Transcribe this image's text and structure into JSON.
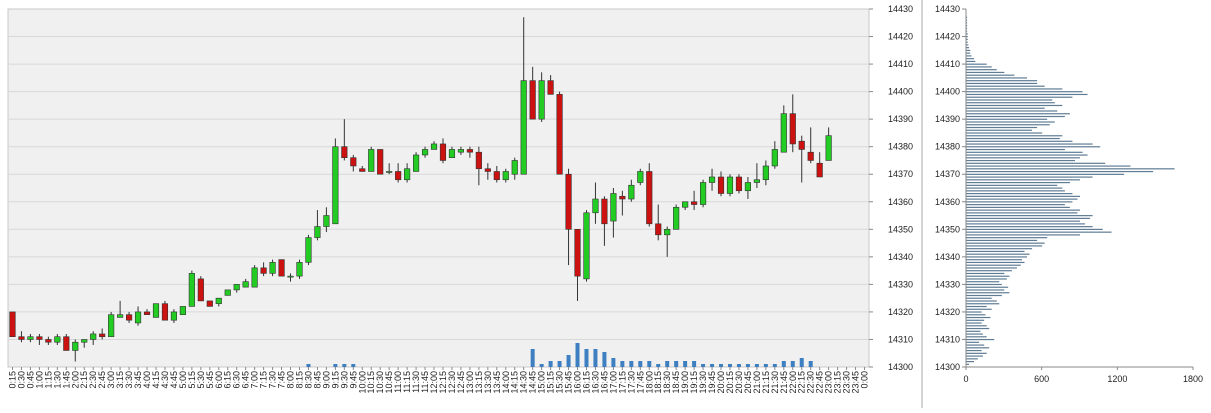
{
  "chart_data": [
    {
      "type": "candlestick",
      "ylim": [
        14300,
        14430
      ],
      "y_ticks": [
        14300,
        14310,
        14320,
        14330,
        14340,
        14350,
        14360,
        14370,
        14380,
        14390,
        14400,
        14410,
        14420,
        14430
      ],
      "y_tick_labels": [
        "14300",
        "14310",
        "14320",
        "14330",
        "14340",
        "14350",
        "14360",
        "14370",
        "14380",
        "14390",
        "14400",
        "14410",
        "14420",
        "14430"
      ],
      "grid": true,
      "background": "#f0f0f0",
      "up_color": "#22cc22",
      "down_color": "#cc1111",
      "volume_color": "#3e7fc1",
      "x_labels": [
        "0:15",
        "0:30",
        "0:45",
        "1:00",
        "1:15",
        "1:30",
        "1:45",
        "2:00",
        "2:15",
        "2:30",
        "2:45",
        "3:00",
        "3:15",
        "3:30",
        "3:45",
        "4:00",
        "4:15",
        "4:30",
        "4:45",
        "5:00",
        "5:15",
        "5:30",
        "5:45",
        "6:00",
        "6:15",
        "6:30",
        "6:45",
        "7:00",
        "7:15",
        "7:30",
        "7:45",
        "8:00",
        "8:15",
        "8:30",
        "8:45",
        "9:00",
        "9:15",
        "9:30",
        "9:45",
        "10:00",
        "10:15",
        "10:30",
        "10:45",
        "11:00",
        "11:15",
        "11:30",
        "11:45",
        "12:00",
        "12:15",
        "12:30",
        "12:45",
        "13:00",
        "13:15",
        "13:30",
        "13:45",
        "14:00",
        "14:15",
        "14:30",
        "14:45",
        "15:00",
        "15:15",
        "15:30",
        "15:45",
        "16:00",
        "16:15",
        "16:30",
        "16:45",
        "17:00",
        "17:15",
        "17:30",
        "17:45",
        "18:00",
        "18:15",
        "18:30",
        "18:45",
        "19:00",
        "19:15",
        "19:30",
        "19:45",
        "20:00",
        "20:15",
        "20:30",
        "20:45",
        "21:00",
        "21:15",
        "21:30",
        "21:45",
        "22:00",
        "22:15",
        "22:30",
        "22:45",
        "23:00",
        "23:15",
        "23:30",
        "23:45",
        "0:00"
      ],
      "candles": [
        {
          "o": 14320,
          "h": 14320,
          "l": 14311,
          "c": 14311
        },
        {
          "o": 14311,
          "h": 14313,
          "l": 14309,
          "c": 14310
        },
        {
          "o": 14310,
          "h": 14312,
          "l": 14309,
          "c": 14311
        },
        {
          "o": 14311,
          "h": 14312,
          "l": 14308,
          "c": 14310
        },
        {
          "o": 14310,
          "h": 14311,
          "l": 14308,
          "c": 14309
        },
        {
          "o": 14309,
          "h": 14312,
          "l": 14308,
          "c": 14311
        },
        {
          "o": 14311,
          "h": 14312,
          "l": 14306,
          "c": 14306
        },
        {
          "o": 14306,
          "h": 14310,
          "l": 14302,
          "c": 14309
        },
        {
          "o": 14309,
          "h": 14310,
          "l": 14307,
          "c": 14310
        },
        {
          "o": 14310,
          "h": 14313,
          "l": 14308,
          "c": 14312
        },
        {
          "o": 14312,
          "h": 14314,
          "l": 14310,
          "c": 14311
        },
        {
          "o": 14311,
          "h": 14320,
          "l": 14311,
          "c": 14319
        },
        {
          "o": 14318,
          "h": 14324,
          "l": 14318,
          "c": 14319
        },
        {
          "o": 14319,
          "h": 14320,
          "l": 14316,
          "c": 14317
        },
        {
          "o": 14316,
          "h": 14322,
          "l": 14315,
          "c": 14320
        },
        {
          "o": 14320,
          "h": 14321,
          "l": 14319,
          "c": 14319
        },
        {
          "o": 14318,
          "h": 14323,
          "l": 14318,
          "c": 14323
        },
        {
          "o": 14323,
          "h": 14324,
          "l": 14317,
          "c": 14317
        },
        {
          "o": 14317,
          "h": 14321,
          "l": 14316,
          "c": 14320
        },
        {
          "o": 14319,
          "h": 14322,
          "l": 14319,
          "c": 14322
        },
        {
          "o": 14322,
          "h": 14335,
          "l": 14322,
          "c": 14334
        },
        {
          "o": 14332,
          "h": 14333,
          "l": 14324,
          "c": 14324
        },
        {
          "o": 14324,
          "h": 14324,
          "l": 14322,
          "c": 14322
        },
        {
          "o": 14323,
          "h": 14325,
          "l": 14322,
          "c": 14325
        },
        {
          "o": 14326,
          "h": 14328,
          "l": 14326,
          "c": 14328
        },
        {
          "o": 14328,
          "h": 14330,
          "l": 14327,
          "c": 14330
        },
        {
          "o": 14329,
          "h": 14332,
          "l": 14329,
          "c": 14331
        },
        {
          "o": 14329,
          "h": 14337,
          "l": 14329,
          "c": 14336
        },
        {
          "o": 14336,
          "h": 14338,
          "l": 14333,
          "c": 14334
        },
        {
          "o": 14334,
          "h": 14339,
          "l": 14333,
          "c": 14338
        },
        {
          "o": 14339,
          "h": 14339,
          "l": 14333,
          "c": 14333
        },
        {
          "o": 14333,
          "h": 14334,
          "l": 14331,
          "c": 14333
        },
        {
          "o": 14333,
          "h": 14339,
          "l": 14332,
          "c": 14338
        },
        {
          "o": 14338,
          "h": 14348,
          "l": 14337,
          "c": 14347
        },
        {
          "o": 14347,
          "h": 14357,
          "l": 14346,
          "c": 14351
        },
        {
          "o": 14351,
          "h": 14358,
          "l": 14349,
          "c": 14355
        },
        {
          "o": 14352,
          "h": 14383,
          "l": 14352,
          "c": 14380
        },
        {
          "o": 14380,
          "h": 14390,
          "l": 14375,
          "c": 14376
        },
        {
          "o": 14376,
          "h": 14377,
          "l": 14371,
          "c": 14373
        },
        {
          "o": 14372,
          "h": 14373,
          "l": 14371,
          "c": 14371
        },
        {
          "o": 14371,
          "h": 14380,
          "l": 14371,
          "c": 14379
        },
        {
          "o": 14379,
          "h": 14379,
          "l": 14370,
          "c": 14370
        },
        {
          "o": 14371,
          "h": 14374,
          "l": 14370,
          "c": 14371
        },
        {
          "o": 14371,
          "h": 14374,
          "l": 14367,
          "c": 14368
        },
        {
          "o": 14368,
          "h": 14374,
          "l": 14367,
          "c": 14372
        },
        {
          "o": 14371,
          "h": 14378,
          "l": 14371,
          "c": 14377
        },
        {
          "o": 14377,
          "h": 14380,
          "l": 14376,
          "c": 14379
        },
        {
          "o": 14379,
          "h": 14382,
          "l": 14379,
          "c": 14381
        },
        {
          "o": 14381,
          "h": 14383,
          "l": 14374,
          "c": 14375
        },
        {
          "o": 14376,
          "h": 14380,
          "l": 14376,
          "c": 14379
        },
        {
          "o": 14378,
          "h": 14380,
          "l": 14377,
          "c": 14379
        },
        {
          "o": 14379,
          "h": 14380,
          "l": 14376,
          "c": 14378
        },
        {
          "o": 14378,
          "h": 14380,
          "l": 14366,
          "c": 14372
        },
        {
          "o": 14372,
          "h": 14374,
          "l": 14368,
          "c": 14371
        },
        {
          "o": 14371,
          "h": 14373,
          "l": 14367,
          "c": 14368
        },
        {
          "o": 14368,
          "h": 14372,
          "l": 14367,
          "c": 14371
        },
        {
          "o": 14370,
          "h": 14376,
          "l": 14368,
          "c": 14375
        },
        {
          "o": 14370,
          "h": 14427,
          "l": 14370,
          "c": 14404
        },
        {
          "o": 14404,
          "h": 14409,
          "l": 14390,
          "c": 14390
        },
        {
          "o": 14390,
          "h": 14407,
          "l": 14389,
          "c": 14404
        },
        {
          "o": 14404,
          "h": 14406,
          "l": 14399,
          "c": 14399
        },
        {
          "o": 14399,
          "h": 14400,
          "l": 14370,
          "c": 14370
        },
        {
          "o": 14370,
          "h": 14372,
          "l": 14337,
          "c": 14350
        },
        {
          "o": 14350,
          "h": 14350,
          "l": 14324,
          "c": 14333
        },
        {
          "o": 14332,
          "h": 14357,
          "l": 14331,
          "c": 14356
        },
        {
          "o": 14356,
          "h": 14367,
          "l": 14352,
          "c": 14361
        },
        {
          "o": 14361,
          "h": 14362,
          "l": 14344,
          "c": 14352
        },
        {
          "o": 14353,
          "h": 14365,
          "l": 14347,
          "c": 14363
        },
        {
          "o": 14362,
          "h": 14364,
          "l": 14355,
          "c": 14361
        },
        {
          "o": 14361,
          "h": 14368,
          "l": 14360,
          "c": 14366
        },
        {
          "o": 14367,
          "h": 14372,
          "l": 14366,
          "c": 14371
        },
        {
          "o": 14371,
          "h": 14374,
          "l": 14351,
          "c": 14352
        },
        {
          "o": 14352,
          "h": 14359,
          "l": 14346,
          "c": 14348
        },
        {
          "o": 14348,
          "h": 14351,
          "l": 14340,
          "c": 14350
        },
        {
          "o": 14350,
          "h": 14359,
          "l": 14350,
          "c": 14358
        },
        {
          "o": 14358,
          "h": 14360,
          "l": 14357,
          "c": 14360
        },
        {
          "o": 14360,
          "h": 14364,
          "l": 14357,
          "c": 14359
        },
        {
          "o": 14359,
          "h": 14368,
          "l": 14358,
          "c": 14367
        },
        {
          "o": 14367,
          "h": 14372,
          "l": 14364,
          "c": 14369
        },
        {
          "o": 14369,
          "h": 14371,
          "l": 14362,
          "c": 14363
        },
        {
          "o": 14363,
          "h": 14370,
          "l": 14362,
          "c": 14369
        },
        {
          "o": 14369,
          "h": 14370,
          "l": 14363,
          "c": 14364
        },
        {
          "o": 14364,
          "h": 14369,
          "l": 14361,
          "c": 14367
        },
        {
          "o": 14367,
          "h": 14374,
          "l": 14365,
          "c": 14368
        },
        {
          "o": 14368,
          "h": 14375,
          "l": 14366,
          "c": 14373
        },
        {
          "o": 14373,
          "h": 14382,
          "l": 14372,
          "c": 14379
        },
        {
          "o": 14378,
          "h": 14395,
          "l": 14378,
          "c": 14392
        },
        {
          "o": 14392,
          "h": 14399,
          "l": 14378,
          "c": 14381
        },
        {
          "o": 14382,
          "h": 14384,
          "l": 14367,
          "c": 14379
        },
        {
          "o": 14378,
          "h": 14387,
          "l": 14374,
          "c": 14375
        },
        {
          "o": 14374,
          "h": 14378,
          "l": 14369,
          "c": 14369
        },
        {
          "o": 14375,
          "h": 14387,
          "l": 14375,
          "c": 14384
        },
        null,
        null,
        null,
        null
      ],
      "volumes": [
        0,
        0,
        0,
        0,
        0,
        0,
        0,
        0,
        0,
        0,
        0,
        0,
        0,
        0,
        0,
        0,
        0,
        0,
        0,
        0,
        0,
        0,
        0,
        0,
        0,
        0,
        0,
        0,
        0,
        0,
        0,
        0,
        0,
        1,
        0,
        0,
        1,
        1,
        1,
        0,
        0,
        0,
        0,
        0,
        0,
        0,
        0,
        0,
        0,
        0,
        0,
        0,
        0,
        0,
        0,
        0,
        0,
        0,
        6,
        1,
        2,
        2,
        4,
        8,
        6,
        6,
        5,
        3,
        2,
        2,
        2,
        2,
        1,
        2,
        2,
        2,
        2,
        1,
        1,
        1,
        1,
        1,
        1,
        1,
        1,
        1,
        2,
        2,
        3,
        2,
        0,
        0,
        0,
        0,
        0,
        0
      ],
      "volume_max": 20
    },
    {
      "type": "bar",
      "orientation": "horizontal",
      "ylim": [
        14300,
        14430
      ],
      "y_ticks": [
        14300,
        14310,
        14320,
        14330,
        14340,
        14350,
        14360,
        14370,
        14380,
        14390,
        14400,
        14410,
        14420,
        14430
      ],
      "y_tick_labels": [
        "14300",
        "14310",
        "14320",
        "14330",
        "14340",
        "14350",
        "14360",
        "14370",
        "14380",
        "14390",
        "14400",
        "14410",
        "14420",
        "14430"
      ],
      "xlim": [
        0,
        1800
      ],
      "x_ticks": [
        0,
        600,
        1200,
        1800
      ],
      "x_tick_labels": [
        "0",
        "600",
        "1200",
        "1800"
      ],
      "bar_color": "#5f7c95",
      "levels": [
        14301,
        14302,
        14303,
        14304,
        14305,
        14306,
        14307,
        14308,
        14309,
        14310,
        14311,
        14312,
        14313,
        14314,
        14315,
        14316,
        14317,
        14318,
        14319,
        14320,
        14321,
        14322,
        14323,
        14324,
        14325,
        14326,
        14327,
        14328,
        14329,
        14330,
        14331,
        14332,
        14333,
        14334,
        14335,
        14336,
        14337,
        14338,
        14339,
        14340,
        14341,
        14342,
        14343,
        14344,
        14345,
        14346,
        14347,
        14348,
        14349,
        14350,
        14351,
        14352,
        14353,
        14354,
        14355,
        14356,
        14357,
        14358,
        14359,
        14360,
        14361,
        14362,
        14363,
        14364,
        14365,
        14366,
        14367,
        14368,
        14369,
        14370,
        14371,
        14372,
        14373,
        14374,
        14375,
        14376,
        14377,
        14378,
        14379,
        14380,
        14381,
        14382,
        14383,
        14384,
        14385,
        14386,
        14387,
        14388,
        14389,
        14390,
        14391,
        14392,
        14393,
        14394,
        14395,
        14396,
        14397,
        14398,
        14399,
        14400,
        14401,
        14402,
        14403,
        14404,
        14405,
        14406,
        14407,
        14408,
        14409,
        14410,
        14411,
        14412,
        14413,
        14414,
        14415,
        14416,
        14417,
        14418,
        14419,
        14420,
        14421,
        14422,
        14423,
        14424,
        14425,
        14426,
        14427
      ],
      "values": [
        20,
        60,
        90,
        130,
        160,
        120,
        180,
        140,
        100,
        220,
        160,
        130,
        110,
        180,
        160,
        120,
        140,
        190,
        150,
        120,
        200,
        160,
        260,
        240,
        200,
        280,
        340,
        300,
        330,
        280,
        260,
        320,
        340,
        300,
        360,
        400,
        430,
        460,
        440,
        480,
        500,
        460,
        520,
        600,
        620,
        560,
        640,
        900,
        1150,
        1080,
        1000,
        940,
        900,
        980,
        1000,
        880,
        900,
        820,
        780,
        840,
        880,
        900,
        840,
        780,
        760,
        720,
        820,
        900,
        1000,
        1250,
        1480,
        1650,
        1300,
        1100,
        860,
        900,
        960,
        920,
        780,
        1060,
        1000,
        840,
        740,
        760,
        600,
        520,
        560,
        660,
        700,
        640,
        780,
        820,
        720,
        620,
        760,
        700,
        680,
        840,
        960,
        920,
        760,
        620,
        560,
        560,
        480,
        380,
        300,
        240,
        200,
        160,
        70,
        60,
        40,
        30,
        30,
        20,
        15,
        10,
        10,
        10,
        10,
        5,
        5,
        5,
        5,
        5,
        5
      ]
    }
  ]
}
